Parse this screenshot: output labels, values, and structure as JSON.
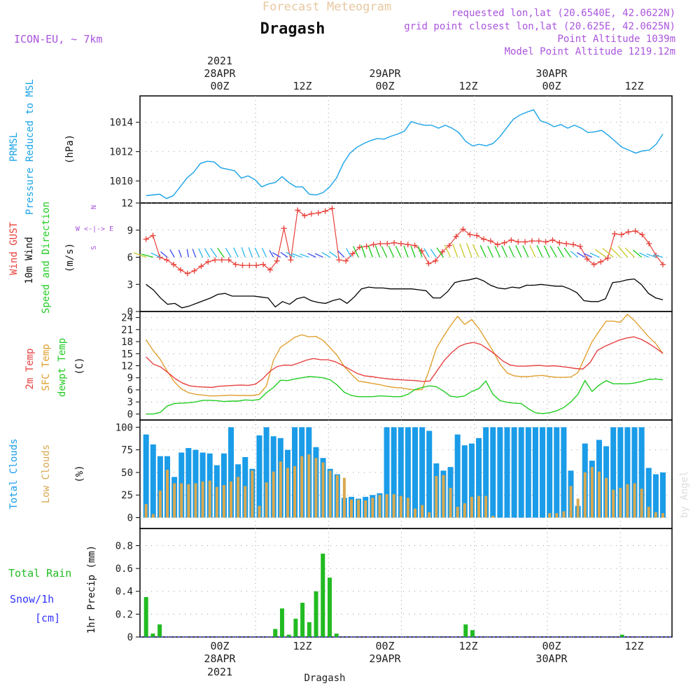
{
  "header": {
    "main_title": "Forecast Meteogram",
    "location": "Dragash",
    "model": "ICON-EU, ~ 7km",
    "requested": "requested lon,lat (20.6540E, 42.0622N)",
    "grid_point": "grid point closest lon,lat (20.625E, 42.0625N)",
    "point_alt": "Point Altitude 1039m",
    "model_alt": "Model Point Altitude 1219.12m",
    "footer": "Dragash",
    "watermark": "by Angel"
  },
  "time_axis": {
    "top_labels": [
      "00Z",
      "12Z",
      "00Z",
      "12Z",
      "00Z",
      "12Z"
    ],
    "top_dates": [
      "28APR",
      "29APR",
      "30APR"
    ],
    "top_year": "2021",
    "bottom_labels": [
      "00Z",
      "12Z",
      "00Z",
      "12Z",
      "00Z",
      "12Z"
    ],
    "bottom_dates": [
      "28APR",
      "29APR",
      "30APR"
    ],
    "bottom_year": "2021"
  },
  "panel_labels": {
    "pressure": [
      "PRMSL",
      "Pressure Reduced to MSL",
      "(hPa)"
    ],
    "wind": [
      "Wind GUST",
      "10m Wind",
      "Speed and Direction",
      "(m/s)"
    ],
    "compass": [
      "N",
      "W <-|-> E",
      "S"
    ],
    "temp": [
      "2m Temp",
      "SFC Temp",
      "dewpt Temp",
      "(C)"
    ],
    "clouds": [
      "Total Clouds",
      "Low Clouds",
      "(%)"
    ],
    "precip": [
      "Total  Rain",
      "Snow/1h",
      "[cm]",
      "1hr Precip (mm)"
    ]
  },
  "colors": {
    "pressure": "#1aa3e8",
    "gust": "#e8403a",
    "wind10m": "#000000",
    "sfc_temp": "#e0a030",
    "temp2m": "#e84040",
    "dewpt": "#22cc22",
    "total_clouds": "#1a9ce8",
    "low_clouds": "#d8a850",
    "rain": "#22bb22",
    "snow": "#3333ff",
    "title": "#e8c8a0",
    "meta": "#aa55dd"
  },
  "chart_data": [
    {
      "type": "line",
      "title": "PRMSL",
      "ylabel": "(hPa)",
      "ylim": [
        1008.5,
        1015.8
      ],
      "yticks": [
        "1010",
        "1012",
        "1014"
      ],
      "x_hours": [
        -18,
        -17,
        -16,
        -15,
        -14,
        -13,
        -12,
        -11,
        -10,
        -9,
        -8,
        -7,
        -6,
        -5,
        -4,
        -3,
        -2,
        -1,
        0,
        1,
        2,
        3,
        4,
        5,
        6,
        7,
        8,
        9,
        10,
        11,
        12,
        13,
        14,
        15,
        16,
        17,
        18,
        19,
        20,
        21,
        22,
        23,
        24,
        25,
        26,
        27,
        28,
        29,
        30,
        31,
        32,
        33,
        34,
        35,
        36,
        37,
        38,
        39,
        40,
        41,
        42,
        43,
        44,
        45,
        46,
        47,
        48,
        49,
        50,
        51,
        52,
        53,
        54,
        55,
        56,
        57,
        58,
        59,
        60,
        61,
        62,
        63,
        64,
        65,
        66,
        67,
        68
      ],
      "series": [
        {
          "name": "PRMSL",
          "values": [
            1009.0,
            1009.05,
            1009.1,
            1008.8,
            1009.0,
            1009.6,
            1010.2,
            1010.6,
            1011.2,
            1011.35,
            1011.3,
            1010.9,
            1010.8,
            1010.7,
            1010.2,
            1010.35,
            1010.1,
            1009.6,
            1009.8,
            1009.9,
            1010.3,
            1009.9,
            1009.6,
            1009.6,
            1009.1,
            1009.05,
            1009.2,
            1009.6,
            1010.2,
            1011.2,
            1011.9,
            1012.3,
            1012.55,
            1012.75,
            1012.9,
            1012.85,
            1013.05,
            1013.2,
            1013.4,
            1014.05,
            1013.9,
            1013.8,
            1013.8,
            1013.6,
            1013.8,
            1013.6,
            1013.3,
            1012.7,
            1012.4,
            1012.5,
            1012.4,
            1012.55,
            1013.0,
            1013.6,
            1014.2,
            1014.5,
            1014.7,
            1014.85,
            1014.1,
            1013.95,
            1013.7,
            1013.85,
            1013.6,
            1013.8,
            1013.6,
            1013.3,
            1013.35,
            1013.45,
            1013.1,
            1012.7,
            1012.3,
            1012.1,
            1011.9,
            1012.05,
            1012.1,
            1012.5,
            1013.2
          ]
        }
      ]
    },
    {
      "type": "line",
      "title": "Wind",
      "ylabel": "(m/s)",
      "ylim": [
        0,
        12
      ],
      "yticks": [
        "0",
        "3",
        "6",
        "9",
        "12"
      ],
      "series": [
        {
          "name": "Wind GUST",
          "values": [
            8.0,
            8.4,
            6.0,
            5.7,
            5.2,
            4.6,
            4.2,
            4.5,
            5.0,
            5.5,
            5.7,
            5.7,
            5.7,
            5.2,
            5.1,
            5.1,
            5.1,
            5.2,
            4.6,
            5.6,
            9.2,
            5.7,
            11.2,
            10.6,
            10.8,
            10.9,
            11.1,
            11.4,
            5.7,
            5.6,
            6.4,
            7.1,
            7.2,
            7.4,
            7.5,
            7.5,
            7.6,
            7.5,
            7.4,
            7.3,
            6.7,
            5.3,
            5.6,
            6.6,
            7.3,
            8.3,
            9.1,
            8.5,
            8.4,
            8.0,
            7.8,
            7.4,
            7.6,
            7.9,
            7.7,
            7.7,
            7.8,
            7.8,
            7.7,
            7.9,
            7.6,
            7.5,
            7.4,
            7.2,
            5.8,
            5.2,
            5.5,
            5.9,
            8.6,
            8.5,
            8.8,
            8.9,
            8.5,
            7.5,
            6.2,
            5.2
          ]
        },
        {
          "name": "10m Wind",
          "values": [
            3.0,
            2.4,
            1.5,
            0.8,
            0.9,
            0.4,
            0.6,
            0.9,
            1.2,
            1.5,
            1.9,
            2.0,
            1.7,
            1.7,
            1.7,
            1.7,
            1.6,
            1.5,
            0.5,
            1.1,
            0.8,
            1.4,
            1.6,
            1.2,
            1.0,
            0.9,
            1.2,
            1.4,
            0.9,
            1.6,
            2.5,
            2.7,
            2.6,
            2.6,
            2.5,
            2.5,
            2.5,
            2.5,
            2.4,
            2.3,
            1.5,
            1.5,
            2.2,
            3.2,
            3.4,
            3.5,
            3.7,
            3.4,
            2.9,
            2.6,
            2.5,
            2.7,
            2.6,
            2.9,
            2.9,
            3.0,
            2.9,
            2.8,
            2.8,
            2.5,
            2.1,
            1.2,
            1.1,
            1.1,
            1.4,
            3.2,
            3.3,
            3.5,
            3.6,
            3.0,
            2.0,
            1.5,
            1.3
          ]
        }
      ],
      "wind_direction_deg": [
        250,
        255,
        245,
        230,
        210,
        200,
        190,
        200,
        205,
        210,
        215,
        215,
        210,
        205,
        200,
        200,
        205,
        205,
        210,
        240,
        235,
        240,
        250,
        250,
        245,
        245,
        240,
        235,
        225,
        210,
        205,
        200,
        200,
        200,
        205,
        205,
        205,
        200,
        200,
        200,
        210,
        215,
        215,
        205,
        200,
        200,
        200,
        205,
        205,
        205,
        205,
        205,
        205,
        205,
        205,
        205,
        205,
        205,
        210,
        210,
        215,
        230,
        240,
        245,
        245,
        235,
        230,
        225,
        220,
        225,
        230,
        245,
        250,
        255
      ]
    },
    {
      "type": "line",
      "title": "Temperature",
      "ylabel": "(C)",
      "ylim": [
        -1.5,
        25.5
      ],
      "yticks": [
        "0",
        "3",
        "6",
        "9",
        "12",
        "15",
        "18",
        "21",
        "24"
      ],
      "series": [
        {
          "name": "SFC Temp",
          "values": [
            18.5,
            15.8,
            13.6,
            10.6,
            8.0,
            6.2,
            5.3,
            4.9,
            4.7,
            4.5,
            4.5,
            4.6,
            4.7,
            4.6,
            4.6,
            4.6,
            4.9,
            7.0,
            13.4,
            16.6,
            17.8,
            19.1,
            19.7,
            19.2,
            19.3,
            18.3,
            16.5,
            14.5,
            11.8,
            9.9,
            8.2,
            7.9,
            7.6,
            7.3,
            6.9,
            6.6,
            6.5,
            6.2,
            6.0,
            6.1,
            11.0,
            16.3,
            19.3,
            22.0,
            24.3,
            22.3,
            23.5,
            21.3,
            18.5,
            15.7,
            12.4,
            10.2,
            9.5,
            9.3,
            9.3,
            9.5,
            9.6,
            9.3,
            9.1,
            9.1,
            9.2,
            10.3,
            14.2,
            18.0,
            20.6,
            23.1,
            23.1,
            22.8,
            24.8,
            23.2,
            21.2,
            19.2,
            17.5,
            15.0
          ]
        },
        {
          "name": "2m Temp",
          "values": [
            14.2,
            12.4,
            11.7,
            10.3,
            8.8,
            7.7,
            7.0,
            6.8,
            6.7,
            6.6,
            6.9,
            7.0,
            7.1,
            7.2,
            7.1,
            7.4,
            8.7,
            10.6,
            11.8,
            12.2,
            12.1,
            12.7,
            13.4,
            13.8,
            13.5,
            13.5,
            13.0,
            12.1,
            11.1,
            10.1,
            9.5,
            9.3,
            9.0,
            8.8,
            8.6,
            8.5,
            8.4,
            8.3,
            8.1,
            8.2,
            10.8,
            13.4,
            15.3,
            16.8,
            17.5,
            17.8,
            17.3,
            16.1,
            14.8,
            13.2,
            12.2,
            11.9,
            11.9,
            12.0,
            12.1,
            11.9,
            12.0,
            11.8,
            11.6,
            11.3,
            11.2,
            12.8,
            15.8,
            16.8,
            17.6,
            18.4,
            18.9,
            19.2,
            18.6,
            17.6,
            16.4,
            15.1
          ]
        },
        {
          "name": "dewpt Temp",
          "values": [
            0.0,
            0.0,
            0.4,
            2.0,
            2.6,
            2.7,
            2.8,
            3.0,
            3.4,
            3.4,
            3.3,
            3.1,
            3.2,
            3.2,
            3.5,
            3.4,
            3.6,
            5.3,
            6.6,
            8.4,
            8.3,
            8.7,
            9.0,
            9.3,
            9.2,
            9.0,
            8.5,
            7.2,
            5.4,
            4.6,
            4.3,
            4.3,
            4.3,
            4.5,
            4.4,
            4.3,
            4.3,
            4.9,
            6.1,
            6.6,
            7.0,
            6.8,
            5.7,
            4.4,
            4.2,
            4.5,
            5.6,
            6.3,
            8.2,
            4.9,
            3.3,
            2.9,
            2.7,
            2.6,
            1.3,
            0.3,
            0.1,
            0.3,
            0.8,
            1.6,
            3.0,
            4.9,
            8.3,
            5.6,
            7.2,
            8.3,
            7.5,
            7.5,
            7.5,
            7.7,
            8.1,
            8.6,
            8.7,
            8.5
          ]
        }
      ]
    },
    {
      "type": "bar",
      "title": "Clouds",
      "ylabel": "(%)",
      "ylim": [
        0,
        100
      ],
      "yticks": [
        "0",
        "25",
        "50",
        "75",
        "100"
      ],
      "series": [
        {
          "name": "Total Clouds",
          "values": [
            92,
            81,
            68,
            68,
            45,
            72,
            77,
            75,
            72,
            71,
            58,
            71,
            100,
            59,
            67,
            54,
            91,
            100,
            90,
            88,
            75,
            100,
            100,
            100,
            78,
            66,
            54,
            48,
            22,
            23,
            21,
            23,
            25,
            27,
            100,
            100,
            100,
            100,
            100,
            100,
            96,
            60,
            52,
            56,
            92,
            80,
            82,
            88,
            100,
            100,
            100,
            100,
            100,
            100,
            100,
            100,
            100,
            100,
            100,
            100,
            52,
            13,
            82,
            63,
            86,
            79,
            100,
            100,
            100,
            100,
            100,
            55,
            48,
            50
          ]
        },
        {
          "name": "Low Clouds",
          "values": [
            15,
            4,
            30,
            53,
            38,
            38,
            37,
            38,
            40,
            41,
            34,
            36,
            40,
            45,
            35,
            52,
            13,
            39,
            51,
            62,
            55,
            57,
            68,
            70,
            66,
            61,
            52,
            47,
            44,
            20,
            20,
            19,
            22,
            25,
            26,
            26,
            24,
            22,
            10,
            14,
            6,
            46,
            47,
            33,
            12,
            16,
            23,
            24,
            24,
            2,
            0,
            0,
            0,
            0,
            0,
            0,
            0,
            5,
            5,
            7,
            35,
            21,
            50,
            56,
            51,
            44,
            31,
            33,
            37,
            38,
            32,
            12,
            6,
            5
          ]
        }
      ]
    },
    {
      "type": "bar",
      "title": "1hr Precip",
      "ylabel": "1hr Precip (mm)",
      "ylim": [
        0,
        0.95
      ],
      "yticks": [
        "0",
        "0.2",
        "0.4",
        "0.6",
        "0.8"
      ],
      "series": [
        {
          "name": "Total Rain",
          "values": [
            0.35,
            0.03,
            0.11,
            0,
            0,
            0,
            0,
            0,
            0,
            0,
            0,
            0,
            0,
            0,
            0,
            0,
            0,
            0,
            0,
            0.07,
            0.25,
            0.02,
            0.16,
            0.3,
            0.13,
            0.4,
            0.73,
            0.52,
            0.03,
            0,
            0,
            0,
            0,
            0,
            0,
            0,
            0,
            0,
            0,
            0,
            0,
            0,
            0,
            0,
            0,
            0,
            0,
            0.11,
            0.06,
            0,
            0,
            0,
            0,
            0,
            0,
            0,
            0,
            0,
            0,
            0,
            0,
            0,
            0,
            0,
            0,
            0,
            0,
            0,
            0,
            0,
            0.02,
            0,
            0,
            0,
            0,
            0,
            0
          ]
        }
      ]
    }
  ]
}
